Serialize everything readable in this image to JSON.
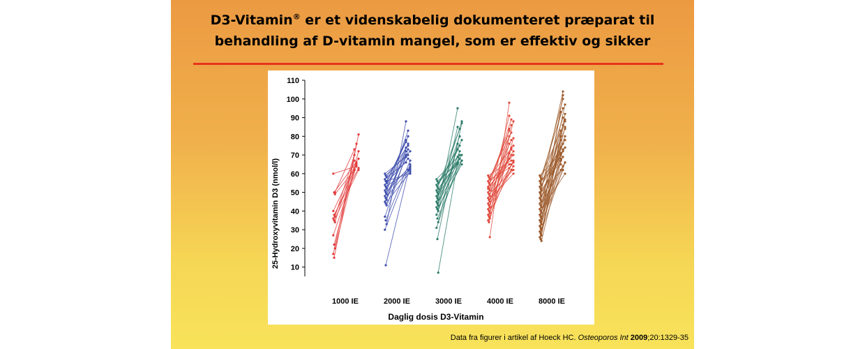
{
  "slide": {
    "title_line1_pre": "D3-Vitamin",
    "title_sup": "®",
    "title_line1_post": " er et videnskabelig dokumenteret præparat til",
    "title_line2": "behandling af D-vitamin mangel, som er effektiv og sikker",
    "source_pre": "Data fra figurer i artikel af Hoeck HC. ",
    "source_journal": "Osteoporos Int",
    "source_space": " ",
    "source_year": "2009",
    "source_post": ";20:1329-35"
  },
  "chart_data": {
    "type": "line",
    "ylabel": "25-Hydroxyvitamin D3 (nmol/l)",
    "xlabel": "Daglig dosis D3-Vitamin",
    "ylim": [
      5,
      110
    ],
    "yticks": [
      10,
      20,
      30,
      40,
      50,
      60,
      70,
      80,
      90,
      100,
      110
    ],
    "grid": false,
    "groups": [
      {
        "name": "1000 IE",
        "color": "#e23b3b",
        "pairs": [
          [
            60,
            64
          ],
          [
            50,
            68
          ],
          [
            49,
            62
          ],
          [
            40,
            66
          ],
          [
            38,
            63
          ],
          [
            37,
            70
          ],
          [
            36,
            65
          ],
          [
            35,
            62
          ],
          [
            34,
            67
          ],
          [
            27,
            64
          ],
          [
            22,
            72
          ],
          [
            20,
            62
          ],
          [
            17,
            76
          ],
          [
            15,
            81
          ],
          [
            50,
            73
          ]
        ]
      },
      {
        "name": "2000 IE",
        "color": "#3f4fae",
        "pairs": [
          [
            60,
            70
          ],
          [
            59,
            72
          ],
          [
            58,
            66
          ],
          [
            57,
            75
          ],
          [
            56,
            60
          ],
          [
            55,
            78
          ],
          [
            54,
            68
          ],
          [
            53,
            62
          ],
          [
            52,
            74
          ],
          [
            51,
            80
          ],
          [
            50,
            64
          ],
          [
            49,
            70
          ],
          [
            48,
            83
          ],
          [
            47,
            63
          ],
          [
            46,
            72
          ],
          [
            45,
            76
          ],
          [
            44,
            61
          ],
          [
            43,
            69
          ],
          [
            37,
            73
          ],
          [
            35,
            67
          ],
          [
            33,
            88
          ],
          [
            30,
            62
          ],
          [
            11,
            65
          ],
          [
            56,
            77
          ]
        ]
      },
      {
        "name": "3000 IE",
        "color": "#2e7d6b",
        "pairs": [
          [
            57,
            70
          ],
          [
            56,
            67
          ],
          [
            55,
            73
          ],
          [
            54,
            68
          ],
          [
            53,
            78
          ],
          [
            52,
            66
          ],
          [
            51,
            84
          ],
          [
            50,
            70
          ],
          [
            49,
            65
          ],
          [
            48,
            75
          ],
          [
            47,
            88
          ],
          [
            46,
            69
          ],
          [
            45,
            80
          ],
          [
            44,
            67
          ],
          [
            43,
            95
          ],
          [
            42,
            72
          ],
          [
            41,
            65
          ],
          [
            40,
            85
          ],
          [
            38,
            70
          ],
          [
            36,
            67
          ],
          [
            34,
            76
          ],
          [
            31,
            68
          ],
          [
            25,
            87
          ],
          [
            7,
            66
          ]
        ]
      },
      {
        "name": "4000 IE",
        "color": "#e04b3e",
        "pairs": [
          [
            59,
            67
          ],
          [
            58,
            75
          ],
          [
            57,
            63
          ],
          [
            56,
            82
          ],
          [
            55,
            70
          ],
          [
            54,
            65
          ],
          [
            53,
            86
          ],
          [
            52,
            72
          ],
          [
            51,
            68
          ],
          [
            50,
            78
          ],
          [
            49,
            62
          ],
          [
            48,
            91
          ],
          [
            47,
            74
          ],
          [
            46,
            66
          ],
          [
            45,
            80
          ],
          [
            44,
            70
          ],
          [
            43,
            64
          ],
          [
            42,
            84
          ],
          [
            41,
            73
          ],
          [
            40,
            67
          ],
          [
            39,
            76
          ],
          [
            38,
            62
          ],
          [
            37,
            88
          ],
          [
            36,
            71
          ],
          [
            35,
            65
          ],
          [
            34,
            79
          ],
          [
            26,
            98
          ],
          [
            52,
            89
          ],
          [
            46,
            60
          ],
          [
            57,
            83
          ]
        ]
      },
      {
        "name": "8000 IE",
        "color": "#9c5a2c",
        "pairs": [
          [
            59,
            72
          ],
          [
            58,
            88
          ],
          [
            57,
            65
          ],
          [
            56,
            95
          ],
          [
            55,
            78
          ],
          [
            54,
            70
          ],
          [
            53,
            100
          ],
          [
            52,
            84
          ],
          [
            51,
            68
          ],
          [
            50,
            90
          ],
          [
            49,
            74
          ],
          [
            48,
            62
          ],
          [
            47,
            104
          ],
          [
            46,
            80
          ],
          [
            45,
            71
          ],
          [
            44,
            86
          ],
          [
            43,
            66
          ],
          [
            42,
            93
          ],
          [
            41,
            76
          ],
          [
            40,
            60
          ],
          [
            39,
            83
          ],
          [
            38,
            69
          ],
          [
            37,
            97
          ],
          [
            36,
            74
          ],
          [
            35,
            64
          ],
          [
            34,
            89
          ],
          [
            33,
            78
          ],
          [
            32,
            62
          ],
          [
            31,
            85
          ],
          [
            30,
            71
          ],
          [
            29,
            102
          ],
          [
            28,
            66
          ],
          [
            27,
            80
          ],
          [
            26,
            73
          ],
          [
            25,
            92
          ],
          [
            24,
            67
          ]
        ]
      }
    ]
  }
}
